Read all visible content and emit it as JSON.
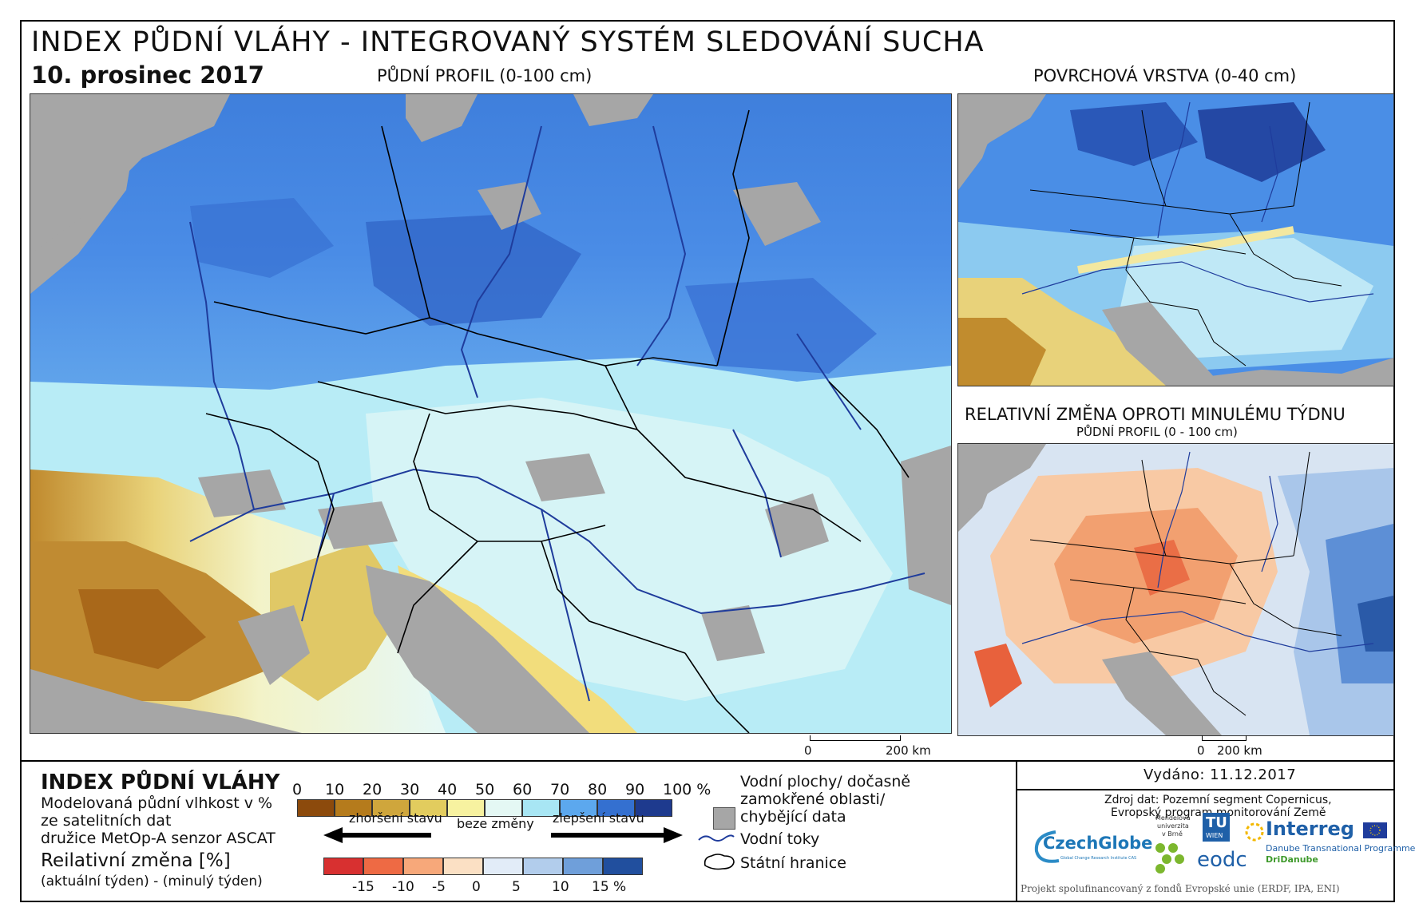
{
  "header": {
    "title": "INDEX PŮDNÍ VLÁHY - INTEGROVANÝ SYSTÉM SLEDOVÁNÍ SUCHA",
    "date": "10. prosinec 2017"
  },
  "maps": {
    "main_label": "PŮDNÍ PROFIL (0-100 cm)",
    "surface_label": "POVRCHOVÁ VRSTVA (0-40 cm)",
    "change_label": "RELATIVNÍ ZMĚNA OPROTI MINULÉMU TÝDNU",
    "change_sublabel": "PŮDNÍ PROFIL (0 - 100 cm)",
    "scale_main_zero": "0",
    "scale_main_end": "200 km",
    "scale_small_zero": "0",
    "scale_small_end": "200 km"
  },
  "legend": {
    "index_title": "INDEX PŮDNÍ VLÁHY",
    "index_desc": [
      "Modelovaná půdní vlhkost v %",
      "ze satelitních dat",
      "družice MetOp-A senzor ASCAT"
    ],
    "change_title": "Reilativní změna [%]",
    "change_desc": "(aktuální týden) - (minulý týden)",
    "index_ticks": [
      "0",
      "10",
      "20",
      "30",
      "40",
      "50",
      "60",
      "70",
      "80",
      "90",
      "100 %"
    ],
    "index_colors": [
      "#8c4a0c",
      "#b57b1c",
      "#cfa63c",
      "#e2cc5e",
      "#f7f2a0",
      "#e4f8f4",
      "#a8e6f4",
      "#5ca8ee",
      "#3470d0",
      "#1e3a8e"
    ],
    "change_arrow_left": "zhoršení stavu",
    "change_arrow_mid": "beze změny",
    "change_arrow_right": "zlepšení stavu",
    "change_ticks": [
      "-15",
      "-10",
      "-5",
      "0",
      "5",
      "10",
      "15 %"
    ],
    "change_colors": [
      "#d83030",
      "#ee6a44",
      "#f7a87a",
      "#fbe0c4",
      "#e2ecf8",
      "#b2cdec",
      "#6f9fda",
      "#214f9e"
    ],
    "water_label": [
      "Vodní plochy/ dočasně",
      "zamokřené oblasti/",
      "chybějící data"
    ],
    "rivers_label": "Vodní toky",
    "borders_label": "Státní hranice",
    "issued": "Vydáno: 11.12.2017",
    "source": [
      "Zdroj dat: Pozemní segment Copernicus,",
      "Evropský program monitorování Země"
    ],
    "logos": {
      "czechglobe": "CzechGlobe",
      "czechglobe_sub": "Global Change Research Institute CAS",
      "mendel": [
        "Mendelova",
        "univerzita",
        "v Brně"
      ],
      "tu": "TU",
      "wien": "WIEN",
      "eodc": "eodc",
      "interreg": "Interreg",
      "interreg_sub": "Danube Transnational Programme",
      "dridanube": "DriDanube"
    },
    "project_note": "Projekt spolufinancovaný z fondů Evropské unie (ERDF, IPA, ENI)"
  },
  "colors": {
    "background_gray": "#a6a6a6",
    "border_black": "#000000",
    "river_blue": "#1f3c9c"
  }
}
